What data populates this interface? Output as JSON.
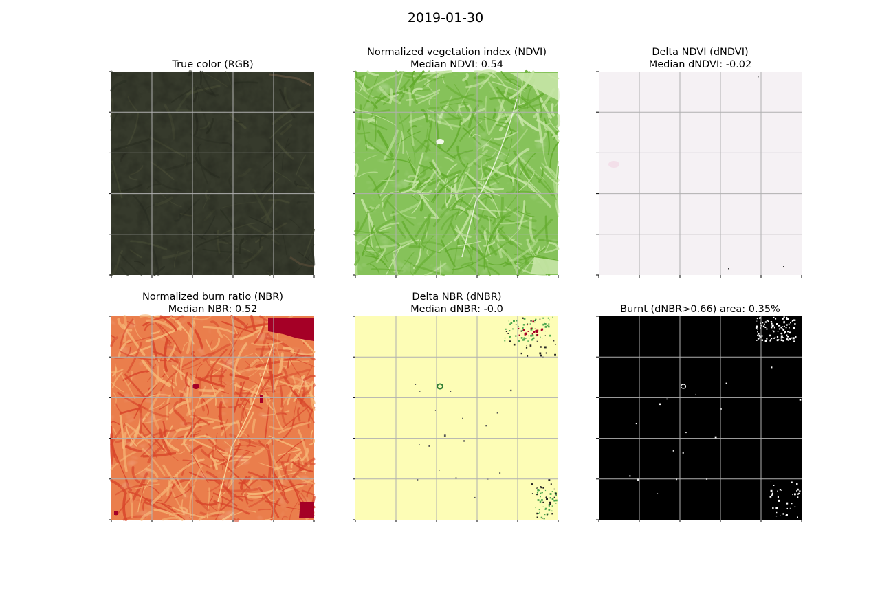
{
  "figure": {
    "suptitle": "2019-01-30"
  },
  "colors": {
    "rgb_base": "#363a2c",
    "ndvi_base": "#86c25a",
    "ndvi_dark": "#62ab2c",
    "ndvi_light": "#c7e6a6",
    "dndvi_base": "#f5f1f4",
    "nbr_base": "#ea7e4c",
    "nbr_dark": "#d8452a",
    "nbr_light": "#f6b878",
    "nbr_burn": "#a50026",
    "dnbr_base": "#fdfdb6",
    "dnbr_green": "#4ea84f",
    "burnt_base": "#000000",
    "burnt_mark": "#ffffff",
    "grid": "#b0b0b0"
  },
  "chart_data": [
    {
      "type": "heatmap",
      "panel": "rgb",
      "title": "True color (RGB)",
      "subtitle": "",
      "grid": true,
      "colormap": "true color"
    },
    {
      "type": "heatmap",
      "panel": "ndvi",
      "title": "Normalized vegetation index (NDVI)",
      "subtitle": "Median NDVI: 0.54",
      "median": 0.54,
      "grid": true,
      "colormap": "greens"
    },
    {
      "type": "heatmap",
      "panel": "dndvi",
      "title": "Delta NDVI (dNDVI)",
      "subtitle": "Median dNDVI: -0.02",
      "median": -0.02,
      "grid": true,
      "colormap": "diverging pink-green"
    },
    {
      "type": "heatmap",
      "panel": "nbr",
      "title": "Normalized burn ratio (NBR)",
      "subtitle": "Median NBR: 0.52",
      "median": 0.52,
      "grid": true,
      "colormap": "red-yellow"
    },
    {
      "type": "heatmap",
      "panel": "dnbr",
      "title": "Delta NBR (dNBR)",
      "subtitle": "Median dNBR: -0.0",
      "median": -0.0,
      "grid": true,
      "colormap": "red-yellow-green"
    },
    {
      "type": "heatmap",
      "panel": "burnt",
      "title": "Burnt (dNBR>0.66) area: 0.35%",
      "subtitle": "",
      "threshold": 0.66,
      "burnt_area_percent": 0.35,
      "grid": true,
      "colormap": "binary"
    }
  ]
}
